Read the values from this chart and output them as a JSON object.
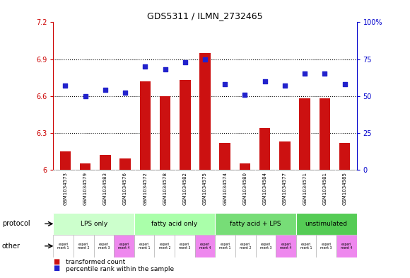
{
  "title": "GDS5311 / ILMN_2732465",
  "samples": [
    "GSM1034573",
    "GSM1034579",
    "GSM1034583",
    "GSM1034576",
    "GSM1034572",
    "GSM1034578",
    "GSM1034582",
    "GSM1034575",
    "GSM1034574",
    "GSM1034580",
    "GSM1034584",
    "GSM1034577",
    "GSM1034571",
    "GSM1034581",
    "GSM1034585"
  ],
  "bar_values": [
    6.15,
    6.05,
    6.12,
    6.09,
    6.72,
    6.6,
    6.73,
    6.95,
    6.22,
    6.05,
    6.34,
    6.23,
    6.58,
    6.58,
    6.22
  ],
  "dot_values": [
    57,
    50,
    54,
    52,
    70,
    68,
    73,
    75,
    58,
    51,
    60,
    57,
    65,
    65,
    58
  ],
  "bar_color": "#cc1111",
  "dot_color": "#2222cc",
  "ylim_left": [
    6.0,
    7.2
  ],
  "ylim_right": [
    0,
    100
  ],
  "yticks_left": [
    6.0,
    6.3,
    6.6,
    6.9,
    7.2
  ],
  "yticks_right": [
    0,
    25,
    50,
    75,
    100
  ],
  "ytick_labels_left": [
    "6",
    "6.3",
    "6.6",
    "6.9",
    "7.2"
  ],
  "ytick_labels_right": [
    "0",
    "25",
    "50",
    "75",
    "100%"
  ],
  "hlines": [
    6.3,
    6.6,
    6.9
  ],
  "protocols": [
    {
      "label": "LPS only",
      "start": 0,
      "end": 4
    },
    {
      "label": "fatty acid only",
      "start": 4,
      "end": 8
    },
    {
      "label": "fatty acid + LPS",
      "start": 8,
      "end": 12
    },
    {
      "label": "unstimulated",
      "start": 12,
      "end": 15
    }
  ],
  "proto_colors": [
    "#ccffcc",
    "#aaffaa",
    "#77dd77",
    "#55cc55"
  ],
  "experiments": [
    "experiment 1",
    "experiment 2",
    "experiment 3",
    "experiment 4",
    "experiment 1",
    "experiment 2",
    "experiment 3",
    "experiment 4",
    "experiment 1",
    "experiment 2",
    "experiment 3",
    "experiment 4",
    "experiment 1",
    "experiment 3",
    "experiment 4"
  ],
  "exp_colors": [
    "#ffffff",
    "#ffffff",
    "#ffffff",
    "#ee88ee",
    "#ffffff",
    "#ffffff",
    "#ffffff",
    "#ee88ee",
    "#ffffff",
    "#ffffff",
    "#ffffff",
    "#ee88ee",
    "#ffffff",
    "#ffffff",
    "#ee88ee"
  ],
  "protocol_label": "protocol",
  "other_label": "other",
  "legend_bar_label": "transformed count",
  "legend_dot_label": "percentile rank within the sample",
  "tick_color_left": "#cc0000",
  "tick_color_right": "#0000cc",
  "bar_width": 0.55,
  "sample_bg_color": "#cccccc",
  "plot_bg_color": "#ffffff"
}
